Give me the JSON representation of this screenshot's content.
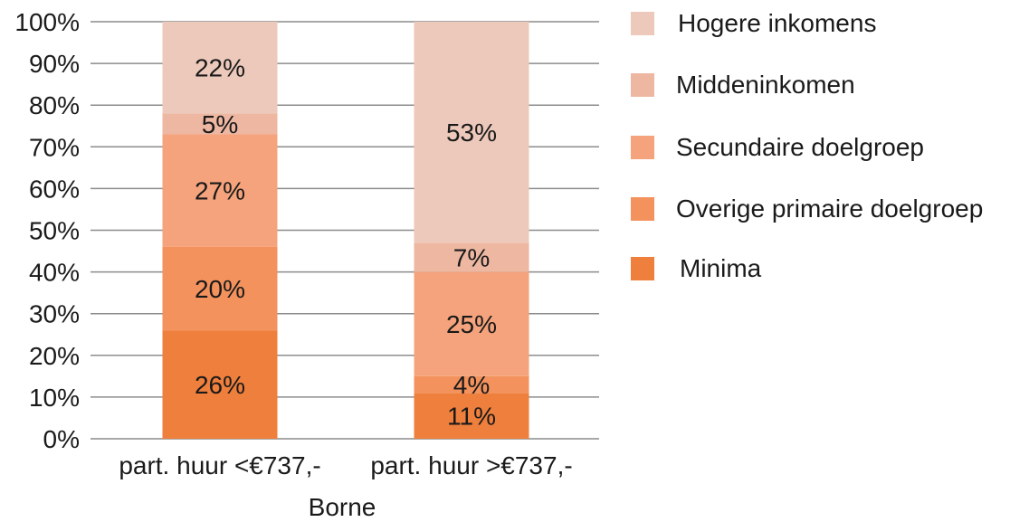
{
  "chart_data": {
    "type": "bar",
    "stacked": true,
    "categories": [
      "part. huur <€737,-",
      "part. huur >€737,-"
    ],
    "xlabel": "Borne",
    "ylabel": "",
    "ylim": [
      0,
      100
    ],
    "y_tick_labels": [
      "0%",
      "10%",
      "20%",
      "30%",
      "40%",
      "50%",
      "60%",
      "70%",
      "80%",
      "90%",
      "100%"
    ],
    "grid": true,
    "legend_position": "right",
    "series": [
      {
        "name": "Minima",
        "color": "#ef7f3c",
        "values": [
          26,
          11
        ],
        "labels": [
          "26%",
          "11%"
        ]
      },
      {
        "name": "Overige primaire doelgroep",
        "color": "#f3925d",
        "values": [
          20,
          4
        ],
        "labels": [
          "20%",
          "4%"
        ]
      },
      {
        "name": "Secundaire doelgroep",
        "color": "#f5a37c",
        "values": [
          27,
          25
        ],
        "labels": [
          "27%",
          "25%"
        ]
      },
      {
        "name": "Middeninkomen",
        "color": "#edb7a2",
        "values": [
          5,
          7
        ],
        "labels": [
          "5%",
          "7%"
        ]
      },
      {
        "name": "Hogere inkomens",
        "color": "#edc9bb",
        "values": [
          22,
          53
        ],
        "labels": [
          "22%",
          "53%"
        ]
      }
    ]
  },
  "legend": {
    "items": [
      {
        "label": "Hogere inkomens",
        "color": "#edc9bb"
      },
      {
        "label": "Middeninkomen",
        "color": "#edb7a2"
      },
      {
        "label": "Secundaire doelgroep",
        "color": "#f5a37c"
      },
      {
        "label": "Overige primaire doelgroep",
        "color": "#f3925d"
      },
      {
        "label": "Minima",
        "color": "#ef7f3c"
      }
    ]
  }
}
